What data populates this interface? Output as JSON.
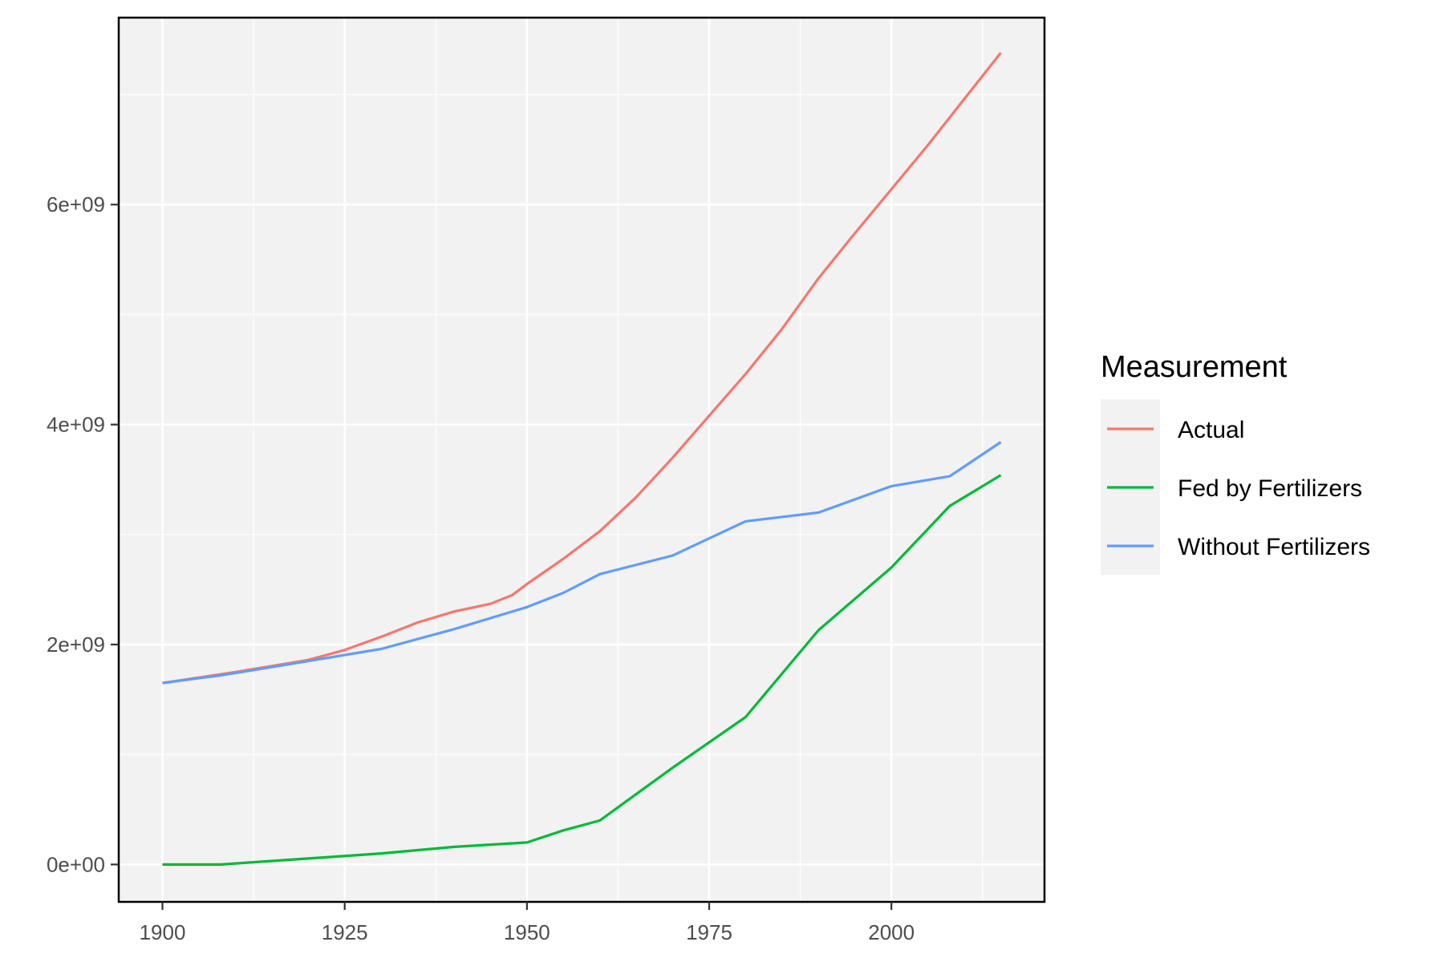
{
  "chart_data": {
    "type": "line",
    "title": "",
    "xlabel": "",
    "ylabel": "",
    "xlim": [
      1894,
      2021
    ],
    "ylim": [
      -340000000,
      7700000000
    ],
    "x_ticks": [
      1900,
      1925,
      1950,
      1975,
      2000
    ],
    "x_tick_labels": [
      "1900",
      "1925",
      "1950",
      "1975",
      "2000"
    ],
    "y_ticks": [
      0,
      2000000000,
      4000000000,
      6000000000
    ],
    "y_tick_labels": [
      "0e+00",
      "2e+09",
      "4e+09",
      "6e+09"
    ],
    "grid": true,
    "legend": {
      "title": "Measurement",
      "position": "right"
    },
    "series": [
      {
        "name": "Actual",
        "color": "#f8766d",
        "points": [
          [
            1900,
            1650000000
          ],
          [
            1910,
            1750000000
          ],
          [
            1920,
            1860000000
          ],
          [
            1925,
            1950000000
          ],
          [
            1930,
            2070000000
          ],
          [
            1935,
            2200000000
          ],
          [
            1940,
            2300000000
          ],
          [
            1945,
            2370000000
          ],
          [
            1948,
            2450000000
          ],
          [
            1950,
            2550000000
          ],
          [
            1955,
            2780000000
          ],
          [
            1960,
            3030000000
          ],
          [
            1965,
            3340000000
          ],
          [
            1970,
            3700000000
          ],
          [
            1975,
            4080000000
          ],
          [
            1980,
            4460000000
          ],
          [
            1985,
            4870000000
          ],
          [
            1990,
            5330000000
          ],
          [
            1995,
            5740000000
          ],
          [
            2000,
            6140000000
          ],
          [
            2005,
            6540000000
          ],
          [
            2010,
            6960000000
          ],
          [
            2015,
            7380000000
          ]
        ]
      },
      {
        "name": "Fed by Fertilizers",
        "color": "#00ba38",
        "points": [
          [
            1900,
            0
          ],
          [
            1908,
            0
          ],
          [
            1930,
            100000000
          ],
          [
            1940,
            160000000
          ],
          [
            1950,
            200000000
          ],
          [
            1955,
            310000000
          ],
          [
            1960,
            400000000
          ],
          [
            1970,
            880000000
          ],
          [
            1980,
            1340000000
          ],
          [
            1990,
            2130000000
          ],
          [
            2000,
            2700000000
          ],
          [
            2008,
            3260000000
          ],
          [
            2015,
            3540000000
          ]
        ]
      },
      {
        "name": "Without Fertilizers",
        "color": "#619cff",
        "points": [
          [
            1900,
            1650000000
          ],
          [
            1908,
            1720000000
          ],
          [
            1910,
            1740000000
          ],
          [
            1920,
            1850000000
          ],
          [
            1930,
            1960000000
          ],
          [
            1940,
            2140000000
          ],
          [
            1950,
            2340000000
          ],
          [
            1955,
            2470000000
          ],
          [
            1960,
            2640000000
          ],
          [
            1970,
            2810000000
          ],
          [
            1980,
            3120000000
          ],
          [
            1990,
            3200000000
          ],
          [
            2000,
            3440000000
          ],
          [
            2008,
            3530000000
          ],
          [
            2015,
            3840000000
          ]
        ]
      }
    ]
  }
}
